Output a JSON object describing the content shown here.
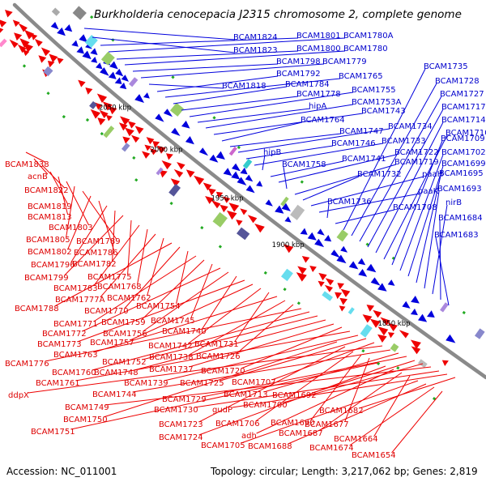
{
  "title": "Burkholderia cenocepacia J2315 chromosome 2, complete genome",
  "accession": "Accession: NC_011001",
  "summary": "Topology: circular; Length: 3,217,062 bp; Genes: 2,819",
  "colors": {
    "forward": "#0000dd",
    "reverse": "#ee0000",
    "backbone": "#8a8a8a",
    "forward_label": "#0000cc",
    "reverse_label": "#dd0000"
  },
  "tick_labels": [
    "2050 kbp",
    "2000 kbp",
    "1950 kbp",
    "1900 kbp",
    "1850 kbp"
  ],
  "forward_labels": [
    "BCAM1824",
    "BCAM1823",
    "BCAM1801",
    "BCAM1780A",
    "BCAM1800",
    "BCAM1780",
    "BCAM1798",
    "BCAM1779",
    "BCAM1818",
    "BCAM1792",
    "BCAM1765",
    "BCAM1784",
    "BCAM1778",
    "BCAM1755",
    "hipA",
    "BCAM1753A",
    "BCAM1743",
    "BCAM1764",
    "BCAM1747",
    "BCAM1734",
    "BCAM1746",
    "BCAM1733",
    "hipB",
    "BCAM1741",
    "BCAM1722",
    "BCAM1758",
    "BCAM1719",
    "BCAM1732",
    "paaH",
    "paaK",
    "BCAM1736",
    "BCAM1708",
    "BCAM1735",
    "BCAM1728",
    "BCAM1727",
    "BCAM1717",
    "BCAM1714",
    "BCAM1710",
    "BCAM1709",
    "BCAM1702",
    "BCAM1699",
    "BCAM1695",
    "BCAM1693",
    "nirB",
    "BCAM1684",
    "BCAM1683"
  ],
  "reverse_labels": [
    "BCAM1838",
    "acnB",
    "BCAM1822",
    "BCAM1819",
    "BCAM1813",
    "BCAM1803",
    "BCAM1805",
    "BCAM1789",
    "BCAM1802",
    "BCAM1786",
    "BCAM1796",
    "BCAM1782",
    "BCAM1799",
    "BCAM1775",
    "BCAM1783",
    "BCAM1768",
    "BCAM1777A",
    "BCAM1762",
    "BCAM1788",
    "BCAM1770",
    "BCAM1754",
    "BCAM1771",
    "BCAM1759",
    "BCAM1745",
    "BCAM1772",
    "BCAM1756",
    "BCAM1740",
    "BCAM1773",
    "BCAM1757",
    "BCAM1742",
    "BCAM1731",
    "BCAM1763",
    "BCAM1738",
    "BCAM1726",
    "BCAM1776",
    "BCAM1760",
    "BCAM1752",
    "BCAM1748",
    "BCAM1737",
    "BCAM1720",
    "BCAM1761",
    "BCAM1739",
    "BCAM1725",
    "BCAM1707",
    "ddpX",
    "BCAM1744",
    "BCAM1713",
    "BCAM1729",
    "BCAM1692",
    "BCAM1700",
    "BCAM1749",
    "BCAM1730",
    "gudP",
    "BCAM1682",
    "BCAM1750",
    "BCAM1723",
    "BCAM1706",
    "BCAM1690",
    "BCAM1677",
    "BCAM1751",
    "BCAM1724",
    "adh",
    "BCAM1687",
    "BCAM1664",
    "BCAM1705",
    "BCAM1688",
    "BCAM1674",
    "BCAM1654"
  ]
}
